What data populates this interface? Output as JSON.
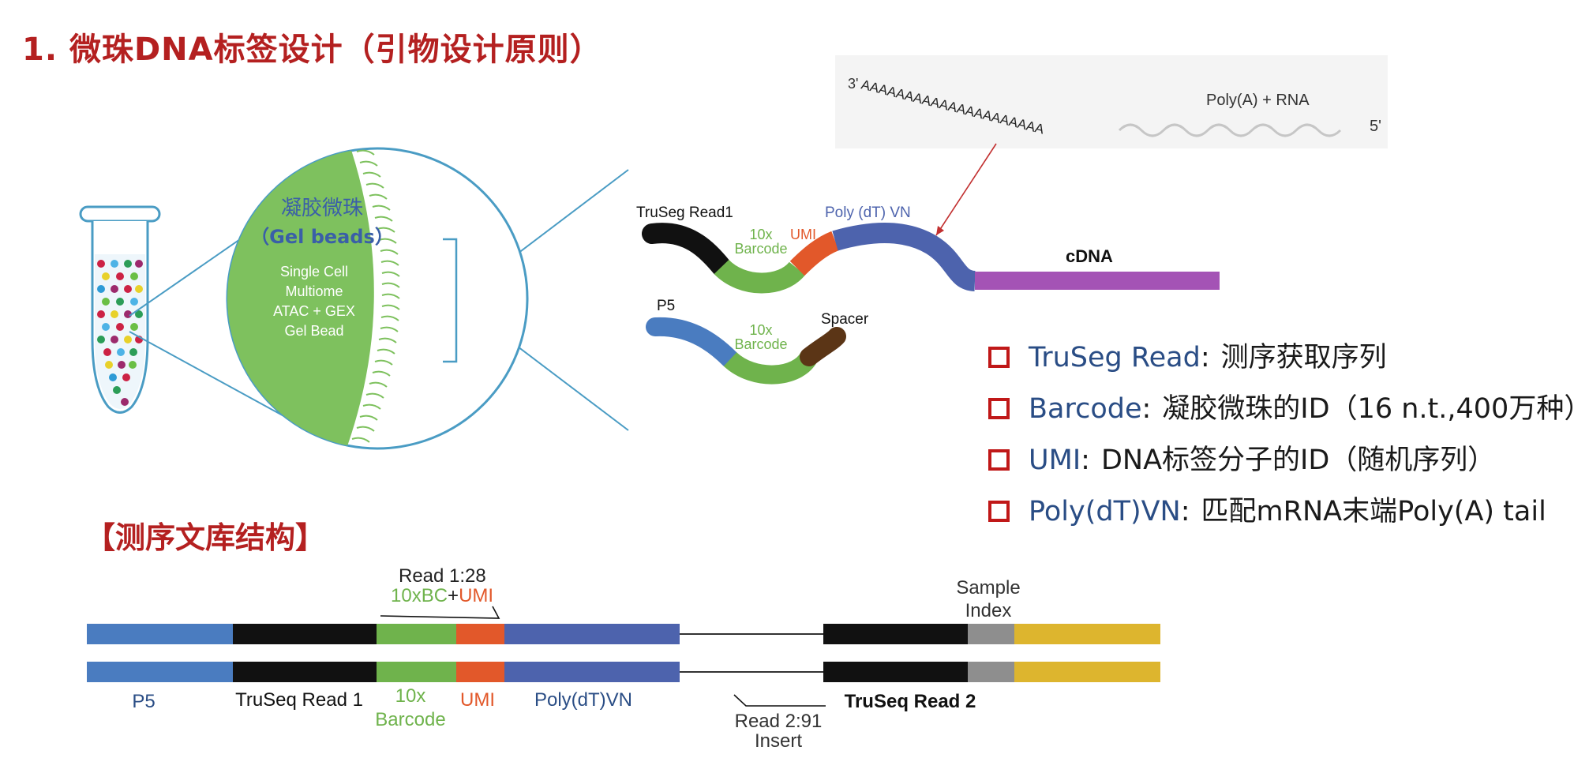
{
  "title": "1. 微珠DNA标签设计（引物设计原则）",
  "bead": {
    "name_cn": "凝胶微珠",
    "name_en": "（Gel beads）",
    "desc": [
      "Single Cell",
      "Multiome",
      "ATAC + GEX",
      "Gel Bead"
    ]
  },
  "rna": {
    "end3": "3'",
    "polyA": "AAAAAAAAAAAAAAAAAAAAA",
    "label": "Poly(A) + RNA",
    "end5": "5'"
  },
  "oligo1": {
    "truseq": "TruSeg Read1",
    "barcode_l1": "10x",
    "barcode_l2": "Barcode",
    "umi": "UMI",
    "polydt": "Poly (dT) VN",
    "cdna": "cDNA"
  },
  "oligo2": {
    "p5": "P5",
    "barcode_l1": "10x",
    "barcode_l2": "Barcode",
    "spacer": "Spacer"
  },
  "legend": [
    {
      "term": "TruSeg Read",
      "sep": ":",
      "desc": "测序获取序列"
    },
    {
      "term": "Barcode",
      "sep": ":",
      "desc": "凝胶微珠的ID（16 n.t.,400万种）"
    },
    {
      "term": "UMI",
      "sep": ":",
      "desc": "DNA标签分子的ID（随机序列）"
    },
    {
      "term": "Poly(dT)VN",
      "sep": ":",
      "desc": "匹配mRNA末端Poly(A) tail"
    }
  ],
  "library": {
    "section_title": "【测序文库结构】",
    "read1": "Read 1:28",
    "read1_bc": "10xBC",
    "read1_plus": "+",
    "read1_umi": "UMI",
    "sample_index_l1": "Sample",
    "sample_index_l2": "Index",
    "labels": {
      "p5": "P5",
      "truseq1": "TruSeq Read 1",
      "barcode_l1": "10x",
      "barcode_l2": "Barcode",
      "umi": "UMI",
      "polydt": "Poly(dT)VN",
      "read2": "Read 2:91",
      "insert": "Insert",
      "truseq2": "TruSeq Read 2"
    }
  },
  "colors": {
    "title_red": "#b42020",
    "p5_blue": "#4a7cc0",
    "truseq_black": "#111111",
    "barcode_green": "#6fb34c",
    "umi_orange": "#e2582a",
    "polydt_blue": "#4d63ad",
    "cdna_purple": "#a453b5",
    "spacer_brown": "#5b3516",
    "index_gray": "#8e8e8e",
    "yellow": "#ddb52e",
    "bead_green": "#7ec15e",
    "term_blue": "#2a4d85"
  }
}
